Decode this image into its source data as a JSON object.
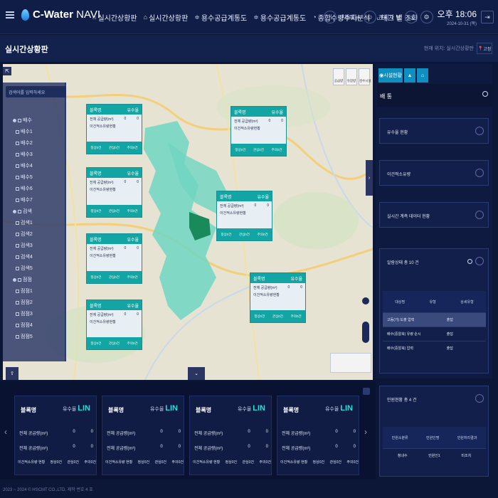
{
  "app": {
    "logo_brand": "C-Water",
    "logo_suffix": " NAVI"
  },
  "menu": [
    {
      "icon": "⌂",
      "label": "실시간상황판"
    },
    {
      "icon": "⌂",
      "label": "실시간상황판"
    },
    {
      "icon": "≑",
      "label": "용수공급계통도"
    },
    {
      "icon": "≑",
      "label": "용수공급계통도"
    },
    {
      "icon": "◔",
      "label": "종합수량수지분석"
    },
    {
      "icon": "⌞",
      "label": "태그 별 조회"
    }
  ],
  "top_right": {
    "all_menu": "전체메뉴",
    "user": "관리자 님",
    "time": "오후 18:06",
    "date": "2024-10-31 (목)"
  },
  "page": {
    "title": "실시간상황판",
    "breadcrumb": "현재 위치: 실시간상황판",
    "pin_button": "고정"
  },
  "tree": {
    "search_placeholder": "검색어를 입력하세요",
    "groups": [
      {
        "name": "배수",
        "items": [
          "배수1",
          "배수2",
          "배수3",
          "배수4",
          "배수5",
          "배수6",
          "배수7"
        ]
      },
      {
        "name": "검색",
        "items": [
          "검색1",
          "검색2",
          "검색3",
          "검색4",
          "검색5"
        ]
      },
      {
        "name": "점점",
        "items": [
          "점점1",
          "점점2",
          "점점3",
          "점점4",
          "점점5"
        ]
      }
    ]
  },
  "popups": {
    "title": "블록명",
    "badge": "유수율",
    "row1": "전체 공급량(m³)",
    "row2": "이건적소유량현황",
    "foot": [
      "정상0건",
      "관심0건",
      "주의0건"
    ],
    "value": "0"
  },
  "right_panel": {
    "tabs": [
      "시설현황"
    ],
    "header_title": "배 통",
    "cards": [
      "유수율 현황",
      "이건적소유량",
      "실시간 계측 데이터 현황"
    ],
    "alarm_title": "알람상태 총 10 건",
    "alarm_columns": [
      "대상명",
      "유형",
      "상세유형"
    ],
    "alarm_rows": [
      {
        "target": "고동(가) 도출 압력",
        "type": "출답"
      },
      {
        "target": "배수(중알북) 유량 순시",
        "type": "출답"
      },
      {
        "target": "배수(중알북) 압력",
        "type": "출답"
      }
    ],
    "civil_title": "민원현황 총 4 건",
    "civil_columns": [
      "민원소분류",
      "민원인명",
      "민원처리결과"
    ],
    "civil_rows": [
      {
        "category": "청내수",
        "name": "민원인1",
        "result": "미조치"
      }
    ]
  },
  "bottom_cards": {
    "title": "블록명",
    "badge_prefix": "유수율",
    "badge_value": "LIN",
    "row_supply": "전체 공급량(m³)",
    "row_supply2": "전체 공급량(m³)",
    "row_inflow": "이건적소유량 현황",
    "value": "0",
    "foot": [
      "정상0건",
      "관심0건",
      "주의0건"
    ]
  },
  "footer": {
    "copyright": "2023 ~ 2024 © HSCMT CO.,LTD. 제작 번호 4 호"
  },
  "colors": {
    "accent": "#13a4a4",
    "nav_bg": "#101d47",
    "tab_blue": "#0f8fc0",
    "cyan_text": "#22e0d8"
  }
}
